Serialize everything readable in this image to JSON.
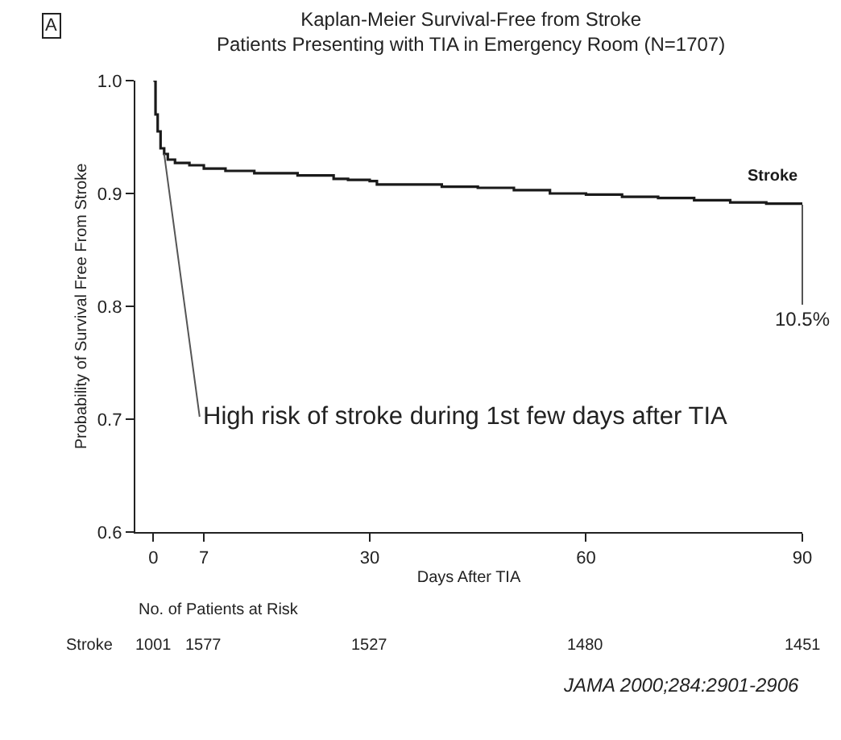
{
  "chart_data": {
    "type": "step",
    "title": "Kaplan-Meier Survival-Free from Stroke",
    "subtitle": "Patients Presenting with TIA in Emergency Room (N=1707)",
    "xlabel": "Days After TIA",
    "ylabel": "Probability of Survival Free From Stroke",
    "series": [
      {
        "name": "Stroke",
        "color": "#1a1a1a",
        "x": [
          0,
          0.3,
          0.6,
          1,
          1.5,
          2,
          3,
          5,
          7,
          10,
          14,
          20,
          25,
          27,
          30,
          31,
          40,
          45,
          50,
          55,
          60,
          65,
          70,
          75,
          80,
          85,
          90
        ],
        "values": [
          1.0,
          0.97,
          0.955,
          0.94,
          0.935,
          0.93,
          0.927,
          0.925,
          0.922,
          0.92,
          0.918,
          0.916,
          0.913,
          0.912,
          0.911,
          0.908,
          0.906,
          0.905,
          0.903,
          0.9,
          0.899,
          0.897,
          0.896,
          0.894,
          0.892,
          0.891,
          0.89
        ]
      }
    ],
    "xlim": [
      -2.5,
      90
    ],
    "xticks": [
      0,
      7,
      30,
      60,
      90
    ],
    "ylim": [
      0.6,
      1.0
    ],
    "yticks": [
      {
        "value": 0.6,
        "label": "0.6"
      },
      {
        "value": 0.7,
        "label": "0.7"
      },
      {
        "value": 0.8,
        "label": "0.8"
      },
      {
        "value": 0.9,
        "label": "0.9"
      },
      {
        "value": 1.0,
        "label": "1.0"
      }
    ],
    "legend": false,
    "marker": "none",
    "line_style": "solid",
    "annotations": [
      "A",
      {
        "text": "10.5%",
        "x": 90,
        "y": 0.89
      },
      {
        "text": "High risk of stroke during 1st few days after TIA",
        "x": 1.5,
        "y": 0.935
      },
      "No. of Patients at Risk",
      "Stroke",
      "1001",
      "1577",
      "1527",
      "1480",
      "1451",
      "JAMA 2000;284:2901-2906"
    ]
  }
}
